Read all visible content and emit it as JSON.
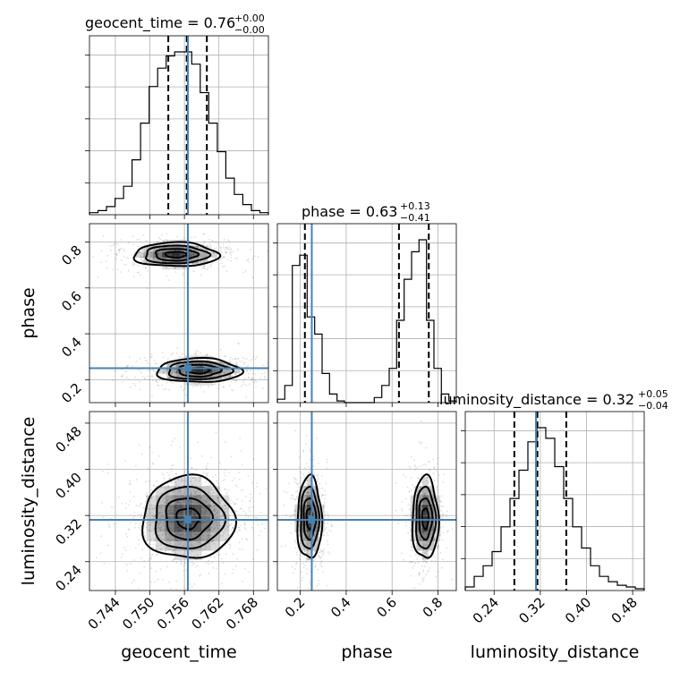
{
  "chart_data": {
    "type": "corner",
    "parameters": [
      {
        "name": "geocent_time",
        "axis_label": "geocent_time",
        "title_main": "geocent_time = 0.76",
        "title_sup": "+0.00",
        "title_sub": "−0.00",
        "range": [
          0.7395,
          0.7706
        ],
        "ticks": [
          "0.744",
          "0.750",
          "0.756",
          "0.762",
          "0.768"
        ],
        "tick_values": [
          0.744,
          0.75,
          0.756,
          0.762,
          0.768
        ],
        "truth": 0.7566,
        "quantiles": [
          0.7532,
          0.7564,
          0.7599
        ]
      },
      {
        "name": "phase",
        "axis_label": "phase",
        "title_main": "phase = 0.63",
        "title_sup": "+0.13",
        "title_sub": "−0.41",
        "range": [
          0.1,
          0.88
        ],
        "ticks": [
          "0.2",
          "0.4",
          "0.6",
          "0.8"
        ],
        "tick_values": [
          0.2,
          0.4,
          0.6,
          0.8
        ],
        "truth": 0.25,
        "quantiles": [
          0.22,
          0.63,
          0.76
        ]
      },
      {
        "name": "luminosity_distance",
        "axis_label": "luminosity_distance",
        "title_main": "luminosity_distance = 0.32",
        "title_sup": "+0.05",
        "title_sub": "−0.04",
        "range": [
          0.19,
          0.5
        ],
        "ticks": [
          "0.24",
          "0.32",
          "0.40",
          "0.48"
        ],
        "tick_values": [
          0.24,
          0.32,
          0.4,
          0.48
        ],
        "truth": 0.3125,
        "quantiles": [
          0.275,
          0.315,
          0.365
        ]
      }
    ],
    "histograms": {
      "geocent_time": [
        1,
        2,
        4,
        8,
        14,
        27,
        45,
        63,
        72,
        78,
        80,
        80,
        74,
        60,
        45,
        31,
        18,
        10,
        5,
        2,
        1
      ],
      "phase": [
        2,
        10,
        80,
        86,
        50,
        40,
        17,
        5,
        1,
        0,
        0,
        0,
        0,
        3,
        10,
        20,
        48,
        72,
        88,
        95,
        48,
        20,
        5,
        1
      ],
      "luminosity_distance": [
        2,
        8,
        14,
        22,
        36,
        52,
        68,
        84,
        92,
        86,
        70,
        52,
        36,
        24,
        14,
        8,
        5,
        3,
        2,
        1
      ]
    },
    "grid": true,
    "truth_color": "#4682b4",
    "hist_color": "#000000",
    "quantile_style": "dashed"
  }
}
